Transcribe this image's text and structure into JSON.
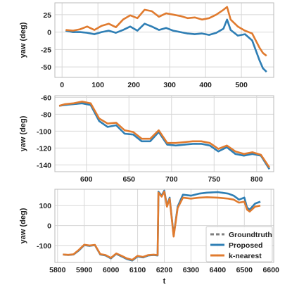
{
  "colors": {
    "groundtruth": "#7f7f7f",
    "proposed": "#2f7fb5",
    "knearest": "#e07b2f",
    "grid": "#d7d7d7",
    "spine": "#bbbbbb"
  },
  "chart_data": [
    {
      "type": "line",
      "ylabel": "yaw (deg)",
      "xlabel": "",
      "xlim": [
        -20,
        590
      ],
      "ylim": [
        -65,
        42
      ],
      "xticks": [
        0,
        100,
        200,
        300,
        400,
        500
      ],
      "yticks": [
        25,
        0,
        -25,
        -50
      ],
      "x": [
        10,
        30,
        50,
        70,
        90,
        110,
        130,
        150,
        170,
        190,
        210,
        230,
        250,
        270,
        290,
        310,
        330,
        350,
        370,
        390,
        410,
        430,
        450,
        460,
        470,
        490,
        510,
        530,
        550,
        560,
        570
      ],
      "series": [
        {
          "key": "groundtruth",
          "values": [
            2,
            0,
            0,
            -1,
            -3,
            0,
            2,
            -1,
            3,
            8,
            2,
            12,
            8,
            3,
            6,
            2,
            0,
            -2,
            -3,
            -2,
            -4,
            -1,
            5,
            18,
            3,
            -5,
            -3,
            -12,
            -40,
            -52,
            -57
          ]
        },
        {
          "key": "proposed",
          "values": [
            2,
            0,
            0,
            -1,
            -3,
            0,
            2,
            -1,
            3,
            8,
            2,
            12,
            8,
            3,
            6,
            2,
            0,
            -2,
            -3,
            -2,
            -4,
            -1,
            5,
            18,
            3,
            -5,
            -3,
            -12,
            -40,
            -52,
            -57
          ]
        },
        {
          "key": "knearest",
          "values": [
            3,
            2,
            4,
            8,
            3,
            9,
            12,
            7,
            18,
            24,
            20,
            32,
            30,
            22,
            27,
            25,
            23,
            20,
            21,
            18,
            20,
            25,
            32,
            36,
            18,
            8,
            2,
            -2,
            -22,
            -30,
            -34
          ]
        }
      ]
    },
    {
      "type": "line",
      "ylabel": "yaw (deg)",
      "xlabel": "",
      "xlim": [
        563,
        820
      ],
      "ylim": [
        -148,
        -58
      ],
      "xticks": [
        600,
        650,
        700,
        750,
        800
      ],
      "yticks": [
        -60,
        -80,
        -100,
        -120,
        -140
      ],
      "x": [
        568,
        575,
        585,
        595,
        605,
        615,
        625,
        635,
        645,
        655,
        665,
        675,
        685,
        695,
        705,
        715,
        725,
        735,
        745,
        755,
        765,
        775,
        785,
        795,
        805,
        815
      ],
      "series": [
        {
          "key": "groundtruth",
          "values": [
            -70,
            -69,
            -68,
            -67,
            -69,
            -88,
            -95,
            -93,
            -103,
            -104,
            -112,
            -112,
            -101,
            -116,
            -117,
            -116,
            -115,
            -115,
            -117,
            -124,
            -119,
            -127,
            -129,
            -127,
            -129,
            -145
          ]
        },
        {
          "key": "proposed",
          "values": [
            -70,
            -69,
            -68,
            -67,
            -69,
            -88,
            -95,
            -93,
            -103,
            -104,
            -112,
            -112,
            -101,
            -116,
            -117,
            -116,
            -115,
            -115,
            -117,
            -124,
            -119,
            -127,
            -129,
            -127,
            -129,
            -145
          ]
        },
        {
          "key": "knearest",
          "values": [
            -70,
            -68,
            -67,
            -65,
            -67,
            -85,
            -91,
            -90,
            -99,
            -101,
            -109,
            -109,
            -99,
            -114,
            -114,
            -113,
            -112,
            -112,
            -114,
            -121,
            -117,
            -124,
            -127,
            -125,
            -128,
            -143
          ]
        }
      ]
    },
    {
      "type": "line",
      "ylabel": "yaw (deg)",
      "xlabel": "t",
      "xlim": [
        5790,
        6610
      ],
      "ylim": [
        -185,
        182
      ],
      "xticks": [
        5800,
        5900,
        6000,
        6100,
        6200,
        6300,
        6400,
        6500,
        6600
      ],
      "yticks": [
        100,
        0,
        -100
      ],
      "x": [
        5820,
        5840,
        5860,
        5880,
        5900,
        5920,
        5940,
        5960,
        5980,
        6000,
        6020,
        6040,
        6060,
        6080,
        6100,
        6120,
        6140,
        6160,
        6175,
        6178,
        6190,
        6200,
        6210,
        6220,
        6235,
        6250,
        6270,
        6300,
        6330,
        6360,
        6400,
        6440,
        6460,
        6480,
        6500,
        6510,
        6520,
        6540,
        6560
      ],
      "series": [
        {
          "key": "groundtruth",
          "values": [
            -145,
            -148,
            -145,
            -125,
            -98,
            -102,
            -98,
            -145,
            -150,
            -165,
            -142,
            -155,
            -168,
            -175,
            -155,
            -160,
            -150,
            -148,
            -150,
            170,
            150,
            175,
            100,
            140,
            -50,
            95,
            155,
            150,
            160,
            165,
            168,
            160,
            150,
            130,
            140,
            90,
            80,
            110,
            120
          ]
        },
        {
          "key": "proposed",
          "values": [
            -145,
            -148,
            -145,
            -125,
            -98,
            -102,
            -98,
            -145,
            -150,
            -165,
            -142,
            -155,
            -168,
            -175,
            -155,
            -160,
            -150,
            -148,
            -150,
            170,
            150,
            175,
            100,
            140,
            -50,
            95,
            155,
            150,
            160,
            165,
            168,
            160,
            150,
            130,
            140,
            90,
            80,
            110,
            120
          ]
        },
        {
          "key": "knearest",
          "values": [
            -145,
            -147,
            -144,
            -122,
            -96,
            -100,
            -97,
            -143,
            -148,
            -162,
            -140,
            -152,
            -165,
            -172,
            -152,
            -157,
            -148,
            -146,
            -148,
            165,
            145,
            170,
            95,
            135,
            -55,
            88,
            140,
            135,
            140,
            142,
            140,
            135,
            130,
            115,
            120,
            80,
            70,
            95,
            100
          ]
        }
      ]
    }
  ],
  "legend": {
    "position": "lower-right of bottom panel",
    "items": [
      {
        "key": "groundtruth",
        "label": "Groundtruth",
        "dashed": true
      },
      {
        "key": "proposed",
        "label": "Proposed",
        "dashed": false
      },
      {
        "key": "knearest",
        "label": "k-nearest",
        "dashed": false
      }
    ]
  }
}
